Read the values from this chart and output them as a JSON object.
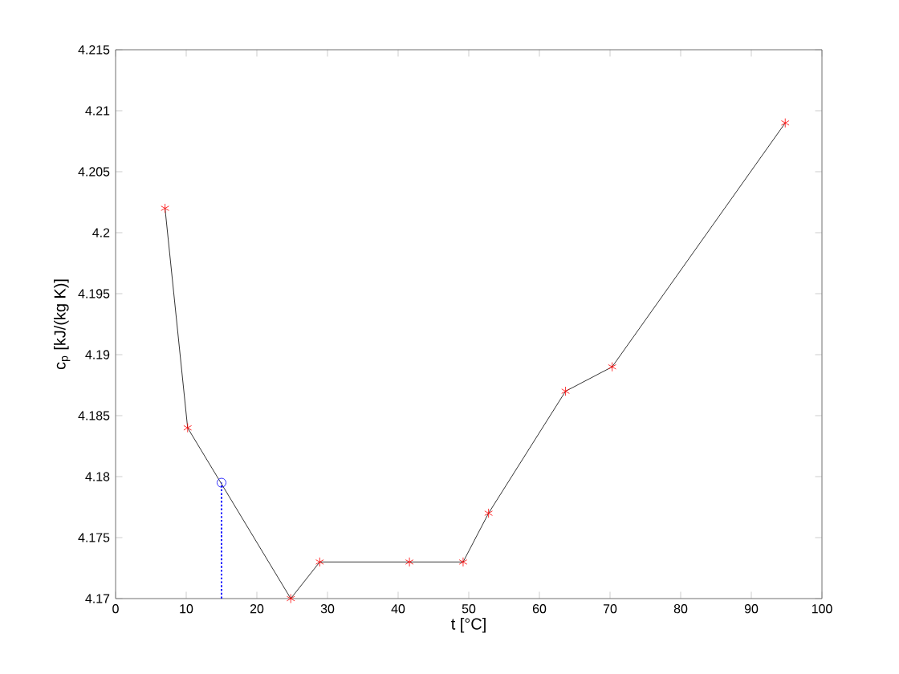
{
  "chart_data": {
    "type": "line",
    "xlabel": "t [°C]",
    "ylabel": "c$_{p}$ [kJ/(kg K)]",
    "xlim": [
      0,
      100
    ],
    "ylim": [
      4.17,
      4.215
    ],
    "xticks": [
      0,
      10,
      20,
      30,
      40,
      50,
      60,
      70,
      80,
      90,
      100
    ],
    "yticks": [
      4.17,
      4.175,
      4.18,
      4.185,
      4.19,
      4.195,
      4.2,
      4.205,
      4.21,
      4.215
    ],
    "grid": false,
    "series": [
      {
        "color": "#000000",
        "marker": "none",
        "line_style": "solid",
        "x": [
          7,
          10.2,
          24.8,
          28.9,
          41.6,
          49.2,
          52.8,
          63.7,
          70.3,
          94.8
        ],
        "values": [
          4.202,
          4.184,
          4.17,
          4.173,
          4.173,
          4.173,
          4.177,
          4.187,
          4.189,
          4.209
        ]
      },
      {
        "type": "scatter",
        "color": "#ff0000",
        "marker": "cross",
        "x": [
          7,
          10.2,
          24.8,
          28.9,
          41.6,
          49.2,
          52.8,
          63.7,
          70.3,
          94.8
        ],
        "values": [
          4.202,
          4.184,
          4.17,
          4.173,
          4.173,
          4.173,
          4.177,
          4.187,
          4.189,
          4.209
        ]
      },
      {
        "color": "#0000ff",
        "marker": "none",
        "line_style": "dotted",
        "x": [
          15,
          15
        ],
        "values": [
          4.17,
          4.1795
        ]
      },
      {
        "type": "scatter",
        "color": "#0000ff",
        "marker": "circle",
        "x": [
          15
        ],
        "values": [
          4.1795
        ]
      }
    ]
  }
}
